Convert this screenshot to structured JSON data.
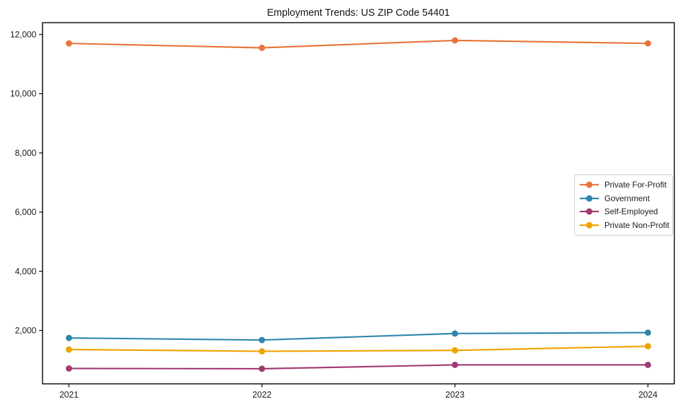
{
  "chart_data": {
    "type": "line",
    "title": "Employment Trends: US ZIP Code 54401",
    "categories": [
      "2021",
      "2022",
      "2023",
      "2024"
    ],
    "series": [
      {
        "name": "Private For-Profit",
        "color": "#E8743B",
        "values": [
          11700,
          11550,
          11800,
          11700
        ]
      },
      {
        "name": "Government",
        "color": "#2E86AB",
        "values": [
          1750,
          1680,
          1900,
          1930
        ]
      },
      {
        "name": "Self-Employed",
        "color": "#A23B72",
        "values": [
          720,
          710,
          840,
          840
        ]
      },
      {
        "name": "Private Non-Profit",
        "color": "#F0A202",
        "values": [
          1360,
          1300,
          1330,
          1470
        ]
      }
    ],
    "xlabel": "",
    "ylabel": "",
    "ylim": [
      200,
      12400
    ],
    "yticks": [
      2000,
      4000,
      6000,
      8000,
      10000,
      12000
    ],
    "ytick_labels": [
      "2,000",
      "4,000",
      "6,000",
      "8,000",
      "10,000",
      "12,000"
    ],
    "grid": false,
    "legend_position": "center right",
    "marker": "circle",
    "text_color": "#1a1a1a",
    "spine_color": "#000000"
  }
}
